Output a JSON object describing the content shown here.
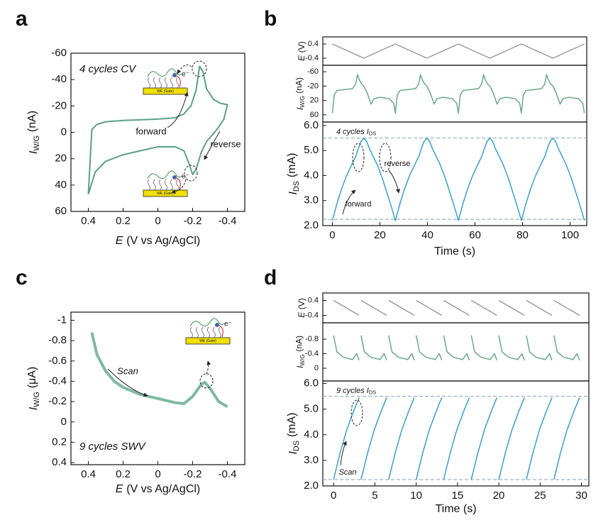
{
  "chart_data": [
    {
      "type": "line",
      "panel": "a",
      "x_label": {
        "text": "E",
        "unit": "(V vs Ag/AgCl)"
      },
      "y_label": {
        "text": "I",
        "sub": "W/G",
        "unit": "(nA)"
      },
      "annotations": [
        "4 cycles CV",
        "forward",
        "reverse"
      ],
      "inset_labels": [
        "WE (Gate)",
        "e⁻"
      ],
      "xlim": [
        0.5,
        -0.5
      ],
      "xticks": [
        0.4,
        0.2,
        0,
        -0.2,
        -0.4
      ],
      "ylim": [
        60,
        -60
      ],
      "yticks": [
        -60,
        -40,
        -20,
        0,
        20,
        40,
        60
      ],
      "x": [
        0.4,
        0.38,
        0.35,
        0.3,
        0.2,
        0.1,
        0,
        -0.1,
        -0.15,
        -0.19,
        -0.22,
        -0.24,
        -0.26,
        -0.28,
        -0.32,
        -0.36,
        -0.4,
        -0.38,
        -0.35,
        -0.32,
        -0.28,
        -0.25,
        -0.22,
        -0.2,
        -0.18,
        -0.15,
        -0.1,
        0,
        0.1,
        0.2,
        0.3,
        0.36,
        0.4
      ],
      "series": [
        {
          "color": "#5c9e8a",
          "values": [
            47,
            -2,
            -6,
            -8,
            -9,
            -9.5,
            -10,
            -11,
            -14,
            -20,
            -32,
            -50,
            -46,
            -33,
            -25,
            -22,
            -21,
            -10,
            -4,
            1,
            7,
            15,
            28,
            32,
            24,
            14,
            11,
            11,
            14,
            17,
            22,
            30,
            47
          ]
        }
      ]
    },
    {
      "type": "line",
      "panel": "b",
      "y_label": {
        "text": "E",
        "unit": "(V)"
      },
      "xlim": [
        -4,
        107
      ],
      "ylim": [
        -0.8,
        0.8
      ],
      "yticks": [
        0.4,
        -0.4
      ],
      "x": [
        0,
        13.25,
        26.5,
        39.75,
        53,
        66.25,
        79.5,
        92.75,
        106
      ],
      "series": [
        {
          "color": "#999999",
          "values": [
            0.4,
            -0.4,
            0.4,
            -0.4,
            0.4,
            -0.4,
            0.4,
            -0.4,
            0.4
          ]
        }
      ]
    },
    {
      "type": "line",
      "y_label": {
        "text": "I",
        "sub": "W/G",
        "unit": "(nA)"
      },
      "xlim": [
        -4,
        107
      ],
      "ylim": [
        80,
        -78
      ],
      "yticks": [
        -60,
        -20,
        20,
        60
      ],
      "x": [
        0,
        0.8,
        2,
        5,
        8.5,
        9.8,
        10.6,
        11.3,
        12.3,
        13.25,
        14.6,
        16.3,
        17.5,
        20,
        24,
        25.8,
        26.5,
        27.3,
        28.5,
        31.5,
        35,
        36.3,
        37.1,
        37.8,
        38.8,
        39.75,
        41.1,
        42.8,
        44,
        46.5,
        50.5,
        52.3,
        53,
        53.8,
        55,
        58,
        61.5,
        62.8,
        63.6,
        64.3,
        65.3,
        66.25,
        67.6,
        69.3,
        70.5,
        73,
        77,
        78.8,
        79.5,
        80.3,
        81.5,
        84.5,
        88,
        89.3,
        90.1,
        90.8,
        91.8,
        92.75,
        94.1,
        95.8,
        97,
        99.5,
        103.5,
        105.3,
        106
      ],
      "series": [
        {
          "color": "#6aa88a",
          "values": [
            55,
            5,
            -8,
            -10,
            -13,
            -25,
            -52,
            -38,
            -26,
            -20,
            -2,
            30,
            15,
            11,
            15,
            28,
            55,
            5,
            -8,
            -10,
            -13,
            -25,
            -52,
            -38,
            -26,
            -20,
            -2,
            30,
            15,
            11,
            15,
            28,
            55,
            5,
            -8,
            -10,
            -13,
            -25,
            -52,
            -38,
            -26,
            -20,
            -2,
            30,
            15,
            11,
            15,
            28,
            55,
            5,
            -8,
            -10,
            -13,
            -25,
            -52,
            -38,
            -26,
            -20,
            -2,
            30,
            15,
            11,
            15,
            28,
            55
          ]
        }
      ]
    },
    {
      "type": "line",
      "x_label": "Time (s)",
      "y_label": {
        "text": "I",
        "sub": "DS",
        "unit": "(mA)"
      },
      "note": {
        "text": "4 cycles I",
        "sub": "DS"
      },
      "annotations": [
        "forward",
        "reverse"
      ],
      "xlim": [
        -4,
        107
      ],
      "xticks": [
        0,
        20,
        40,
        60,
        80,
        100
      ],
      "ylim": [
        2.0,
        6.14
      ],
      "yticks": [
        {
          "value": 2,
          "label": "2.0"
        },
        {
          "value": 3,
          "label": "3.0"
        },
        {
          "value": 4,
          "label": "4.0"
        },
        {
          "value": 5,
          "label": "5.0"
        },
        {
          "value": 6,
          "label": "6.0"
        }
      ],
      "ref_lines": [
        5.5,
        2.25
      ],
      "x": [
        0,
        2,
        4,
        6,
        8,
        10,
        11,
        12,
        13.25,
        14.5,
        15.5,
        17,
        19,
        21,
        23,
        25,
        26.5,
        28.5,
        30.5,
        32.5,
        34.5,
        36.5,
        37.5,
        38.5,
        39.75,
        41,
        42,
        43.5,
        45.5,
        47.5,
        49.5,
        51.5,
        53,
        55,
        57,
        59,
        61,
        63,
        64,
        65,
        66.25,
        67.5,
        68.5,
        70,
        72,
        74,
        76,
        78,
        79.5,
        81.5,
        83.5,
        85.5,
        87.5,
        89.5,
        90.5,
        91.5,
        92.75,
        94,
        95,
        96.5,
        98.5,
        100.5,
        102.5,
        104.5,
        106
      ],
      "series": [
        {
          "color": "#3a9fd0",
          "values": [
            2.2,
            2.9,
            3.5,
            4.0,
            4.4,
            4.8,
            5.1,
            5.35,
            5.5,
            5.35,
            5.1,
            4.8,
            4.4,
            3.9,
            3.3,
            2.7,
            2.2,
            2.9,
            3.5,
            4.0,
            4.4,
            4.8,
            5.1,
            5.35,
            5.5,
            5.35,
            5.1,
            4.8,
            4.4,
            3.9,
            3.3,
            2.7,
            2.2,
            2.9,
            3.5,
            4.0,
            4.4,
            4.8,
            5.1,
            5.35,
            5.5,
            5.35,
            5.1,
            4.8,
            4.4,
            3.9,
            3.3,
            2.7,
            2.2,
            2.9,
            3.5,
            4.0,
            4.4,
            4.8,
            5.1,
            5.35,
            5.5,
            5.35,
            5.1,
            4.8,
            4.4,
            3.9,
            3.3,
            2.7,
            2.2
          ]
        }
      ]
    },
    {
      "type": "line",
      "panel": "c",
      "x_label": {
        "text": "E",
        "unit": "(V vs Ag/AgCl)"
      },
      "y_label": {
        "text": "I",
        "sub": "W/G",
        "unit": "(μA)"
      },
      "annotations": [
        "Scan",
        "9 cycles SWV"
      ],
      "inset_labels": [
        "WE (Gate)",
        "e⁻"
      ],
      "xlim": [
        0.5,
        -0.5
      ],
      "xticks": [
        0.4,
        0.2,
        0,
        -0.2,
        -0.4
      ],
      "ylim": [
        0.42,
        -1.08
      ],
      "yticks": [
        -1,
        -0.8,
        -0.6,
        -0.4,
        -0.2,
        0,
        0.2,
        0.4
      ],
      "x": [
        0.38,
        0.35,
        0.3,
        0.25,
        0.2,
        0.1,
        0,
        -0.1,
        -0.15,
        -0.2,
        -0.25,
        -0.27,
        -0.3,
        -0.35,
        -0.4
      ],
      "series": [
        {
          "color": "#7fb8a0",
          "values": [
            -0.88,
            -0.66,
            -0.5,
            -0.4,
            -0.34,
            -0.27,
            -0.23,
            -0.19,
            -0.18,
            -0.25,
            -0.37,
            -0.39,
            -0.33,
            -0.2,
            -0.15
          ]
        }
      ]
    },
    {
      "type": "line",
      "panel": "d",
      "y_label": {
        "text": "E",
        "unit": "(V)"
      },
      "xlim": [
        -1.3,
        30.9
      ],
      "ylim": [
        -0.8,
        0.8
      ],
      "yticks": [
        0.4,
        -0.4
      ],
      "x": [
        0,
        3.1,
        3.2,
        3.33,
        6.43,
        6.53,
        6.67,
        9.77,
        9.87,
        10,
        13.1,
        13.2,
        13.33,
        16.43,
        16.53,
        16.67,
        19.77,
        19.87,
        20,
        23.1,
        23.2,
        23.33,
        26.43,
        26.53,
        26.67,
        29.77
      ],
      "series": [
        {
          "color": "#999999",
          "values": [
            0.4,
            -0.4,
            null,
            0.4,
            -0.4,
            null,
            0.4,
            -0.4,
            null,
            0.4,
            -0.4,
            null,
            0.4,
            -0.4,
            null,
            0.4,
            -0.4,
            null,
            0.4,
            -0.4,
            null,
            0.4,
            -0.4,
            null,
            0.4,
            -0.4
          ]
        }
      ]
    },
    {
      "type": "line",
      "y_label": {
        "text": "I",
        "sub": "W/G",
        "unit": "(nA)"
      },
      "xlim": [
        -1.3,
        30.9
      ],
      "ylim": [
        0.35,
        -1.25
      ],
      "yticks": [
        -0.8,
        -0.4,
        0
      ],
      "x": [
        0,
        0.4,
        1.2,
        2.3,
        2.8,
        3.1,
        3.2,
        3.33,
        3.73,
        4.53,
        5.63,
        6.13,
        6.43,
        6.53,
        6.67,
        7.07,
        7.87,
        8.97,
        9.47,
        9.77,
        9.87,
        10,
        10.4,
        11.2,
        12.3,
        12.8,
        13.1,
        13.2,
        13.33,
        13.73,
        14.53,
        15.63,
        16.13,
        16.43,
        16.53,
        16.67,
        17.07,
        17.87,
        18.97,
        19.47,
        19.77,
        19.87,
        20,
        20.4,
        21.2,
        22.3,
        22.8,
        23.1,
        23.2,
        23.33,
        23.73,
        24.53,
        25.63,
        26.13,
        26.43,
        26.53,
        26.67,
        27.07,
        27.87,
        28.97,
        29.47,
        29.77
      ],
      "series": [
        {
          "color": "#6aa88a",
          "values": [
            -0.9,
            -0.45,
            -0.3,
            -0.24,
            -0.4,
            -0.22,
            null,
            -0.9,
            -0.45,
            -0.3,
            -0.24,
            -0.4,
            -0.22,
            null,
            -0.9,
            -0.45,
            -0.3,
            -0.24,
            -0.4,
            -0.22,
            null,
            -0.9,
            -0.45,
            -0.3,
            -0.24,
            -0.4,
            -0.22,
            null,
            -0.9,
            -0.45,
            -0.3,
            -0.24,
            -0.4,
            -0.22,
            null,
            -0.9,
            -0.45,
            -0.3,
            -0.24,
            -0.4,
            -0.22,
            null,
            -0.9,
            -0.45,
            -0.3,
            -0.24,
            -0.4,
            -0.22,
            null,
            -0.9,
            -0.45,
            -0.3,
            -0.24,
            -0.4,
            -0.22,
            null,
            -0.9,
            -0.45,
            -0.3,
            -0.24,
            -0.4,
            -0.22
          ]
        }
      ]
    },
    {
      "type": "line",
      "x_label": "Time (s)",
      "y_label": {
        "text": "I",
        "sub": "DS",
        "unit": "(mA)"
      },
      "note": {
        "text": "9 cycles I",
        "sub": "DS"
      },
      "annotations": [
        "Scan"
      ],
      "xlim": [
        -1.3,
        30.9
      ],
      "xticks": [
        0,
        5,
        10,
        15,
        20,
        25,
        30
      ],
      "ylim": [
        2.0,
        6.1
      ],
      "yticks": [
        {
          "value": 2,
          "label": "2.0"
        },
        {
          "value": 3,
          "label": "3.0"
        },
        {
          "value": 4,
          "label": "4.0"
        },
        {
          "value": 5,
          "label": "5.0"
        },
        {
          "value": 6,
          "label": "6.0"
        }
      ],
      "ref_lines": [
        5.5,
        2.25
      ],
      "x": [
        0,
        0.8,
        1.6,
        2.4,
        3.1,
        3.2,
        3.33,
        4.13,
        4.93,
        5.73,
        6.43,
        6.53,
        6.67,
        7.47,
        8.27,
        9.07,
        9.77,
        9.87,
        10,
        10.8,
        11.6,
        12.4,
        13.1,
        13.2,
        13.33,
        14.13,
        14.93,
        15.73,
        16.43,
        16.53,
        16.67,
        17.47,
        18.27,
        19.07,
        19.77,
        19.87,
        20,
        20.8,
        21.6,
        22.4,
        23.1,
        23.2,
        23.33,
        24.13,
        24.93,
        25.73,
        26.43,
        26.53,
        26.67,
        27.47,
        28.27,
        29.07,
        29.77
      ],
      "series": [
        {
          "color": "#3a9fd0",
          "values": [
            2.25,
            3.3,
            4.2,
            4.9,
            5.45,
            null,
            2.25,
            3.3,
            4.2,
            4.9,
            5.45,
            null,
            2.25,
            3.3,
            4.2,
            4.9,
            5.45,
            null,
            2.25,
            3.3,
            4.2,
            4.9,
            5.45,
            null,
            2.25,
            3.3,
            4.2,
            4.9,
            5.45,
            null,
            2.25,
            3.3,
            4.2,
            4.9,
            5.45,
            null,
            2.25,
            3.3,
            4.2,
            4.9,
            5.45,
            null,
            2.25,
            3.3,
            4.2,
            4.9,
            5.45,
            null,
            2.25,
            3.3,
            4.2,
            4.9,
            5.45
          ]
        }
      ]
    }
  ]
}
